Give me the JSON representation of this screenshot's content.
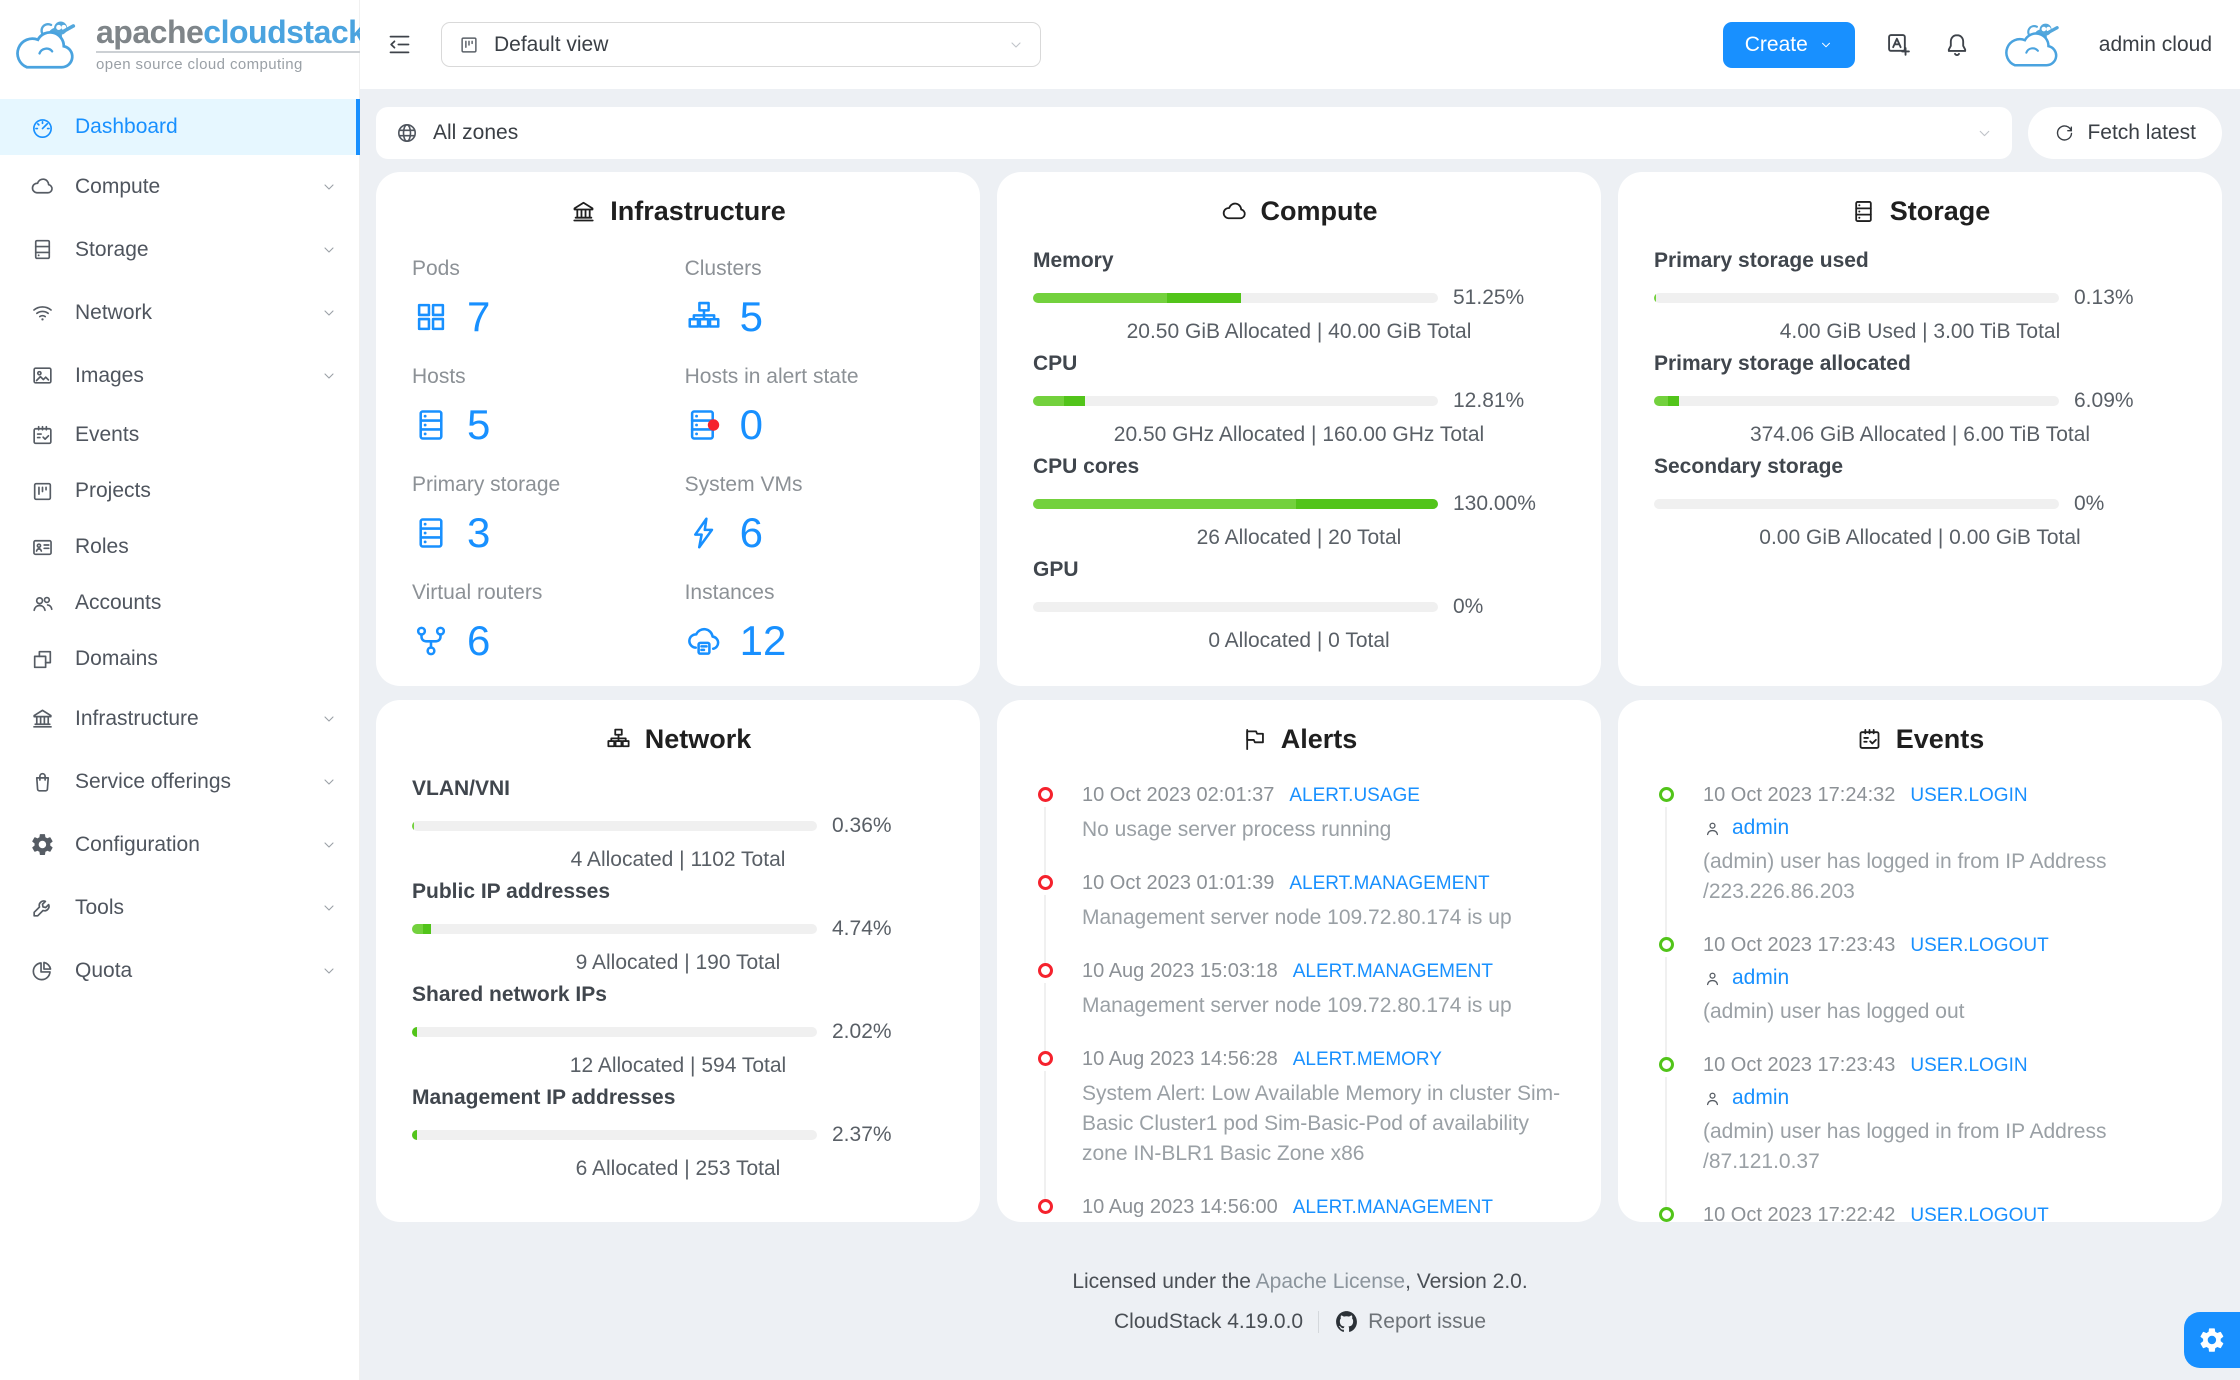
{
  "brand": {
    "name_gray": "apache",
    "name_blue": "cloudstack",
    "tm": "™",
    "tagline": "open source cloud computing"
  },
  "colors": {
    "primary": "#1890ff",
    "green": "#52c41a",
    "green_light": "#73d13d",
    "red": "#f5222d",
    "selected_bg": "#e6f7ff",
    "page_bg": "#edf0f4",
    "track": "#f0f0f0"
  },
  "sidebar": {
    "items": [
      {
        "label": "Dashboard",
        "icon": "dashboard-icon",
        "selected": true,
        "expandable": false,
        "plain": true
      },
      {
        "label": "Compute",
        "icon": "cloud-icon",
        "expandable": true
      },
      {
        "label": "Storage",
        "icon": "database-icon",
        "expandable": true
      },
      {
        "label": "Network",
        "icon": "wifi-icon",
        "expandable": true
      },
      {
        "label": "Images",
        "icon": "picture-icon",
        "expandable": true
      },
      {
        "label": "Events",
        "icon": "schedule-icon",
        "expandable": false,
        "plain": true
      },
      {
        "label": "Projects",
        "icon": "project-icon",
        "expandable": false,
        "plain": true
      },
      {
        "label": "Roles",
        "icon": "idcard-icon",
        "expandable": false,
        "plain": true
      },
      {
        "label": "Accounts",
        "icon": "team-icon",
        "expandable": false,
        "plain": true
      },
      {
        "label": "Domains",
        "icon": "block-icon",
        "expandable": false,
        "plain": true
      },
      {
        "label": "Infrastructure",
        "icon": "bank-icon",
        "expandable": true
      },
      {
        "label": "Service offerings",
        "icon": "shopping-icon",
        "expandable": true
      },
      {
        "label": "Configuration",
        "icon": "setting-icon",
        "expandable": true
      },
      {
        "label": "Tools",
        "icon": "tool-icon",
        "expandable": true
      },
      {
        "label": "Quota",
        "icon": "pie-icon",
        "expandable": true
      }
    ]
  },
  "header": {
    "view_value": "Default view",
    "create_label": "Create",
    "user": "admin cloud"
  },
  "zonebar": {
    "zone_value": "All zones",
    "fetch_label": "Fetch latest"
  },
  "cards": {
    "infrastructure": {
      "title": "Infrastructure",
      "icon": "bank-icon",
      "stats": [
        {
          "label": "Pods",
          "value": "7",
          "icon": "appstore-icon"
        },
        {
          "label": "Clusters",
          "value": "5",
          "icon": "cluster-icon"
        },
        {
          "label": "Hosts",
          "value": "5",
          "icon": "server-icon"
        },
        {
          "label": "Hosts in alert state",
          "value": "0",
          "icon": "server-alert-icon"
        },
        {
          "label": "Primary storage",
          "value": "3",
          "icon": "server-icon"
        },
        {
          "label": "System VMs",
          "value": "6",
          "icon": "thunderbolt-icon"
        },
        {
          "label": "Virtual routers",
          "value": "6",
          "icon": "fork-icon"
        },
        {
          "label": "Instances",
          "value": "12",
          "icon": "cloud-server-icon"
        }
      ]
    },
    "compute": {
      "title": "Compute",
      "icon": "cloud-icon",
      "metrics": [
        {
          "label": "Memory",
          "percent": "51.25%",
          "caption": "20.50 GiB Allocated | 40.00 GiB Total",
          "segments": [
            {
              "pct": 33,
              "color": "#73d13d"
            },
            {
              "pct": 18.3,
              "color": "#52c41a"
            }
          ]
        },
        {
          "label": "CPU",
          "percent": "12.81%",
          "caption": "20.50 GHz Allocated | 160.00 GHz Total",
          "segments": [
            {
              "pct": 7.7,
              "color": "#73d13d"
            },
            {
              "pct": 5.1,
              "color": "#52c41a"
            }
          ]
        },
        {
          "label": "CPU cores",
          "percent": "130.00%",
          "caption": "26 Allocated | 20 Total",
          "segments": [
            {
              "pct": 65,
              "color": "#73d13d"
            },
            {
              "pct": 35,
              "color": "#52c41a"
            }
          ]
        },
        {
          "label": "GPU",
          "percent": "0%",
          "caption": "0 Allocated | 0 Total",
          "segments": []
        }
      ]
    },
    "storage": {
      "title": "Storage",
      "icon": "server-icon",
      "metrics": [
        {
          "label": "Primary storage used",
          "percent": "0.13%",
          "caption": "4.00 GiB Used | 3.00 TiB Total",
          "segments": [
            {
              "pct": 0.6,
              "color": "#73d13d"
            }
          ]
        },
        {
          "label": "Primary storage allocated",
          "percent": "6.09%",
          "caption": "374.06 GiB Allocated | 6.00 TiB Total",
          "segments": [
            {
              "pct": 3.4,
              "color": "#73d13d"
            },
            {
              "pct": 2.7,
              "color": "#52c41a"
            }
          ]
        },
        {
          "label": "Secondary storage",
          "percent": "0%",
          "caption": "0.00 GiB Allocated | 0.00 GiB Total",
          "segments": []
        }
      ]
    },
    "network": {
      "title": "Network",
      "icon": "cluster-icon",
      "metrics": [
        {
          "label": "VLAN/VNI",
          "percent": "0.36%",
          "caption": "4 Allocated | 1102 Total",
          "segments": [
            {
              "pct": 0.6,
              "color": "#73d13d"
            }
          ]
        },
        {
          "label": "Public IP addresses",
          "percent": "4.74%",
          "caption": "9 Allocated | 190 Total",
          "segments": [
            {
              "pct": 2.6,
              "color": "#73d13d"
            },
            {
              "pct": 2.1,
              "color": "#52c41a"
            }
          ]
        },
        {
          "label": "Shared network IPs",
          "percent": "2.02%",
          "caption": "12 Allocated | 594 Total",
          "segments": [
            {
              "pct": 1.3,
              "color": "#52c41a"
            }
          ]
        },
        {
          "label": "Management IP addresses",
          "percent": "2.37%",
          "caption": "6 Allocated | 253 Total",
          "segments": [
            {
              "pct": 1.3,
              "color": "#52c41a"
            }
          ]
        }
      ]
    },
    "alerts": {
      "title": "Alerts",
      "icon": "flag-icon",
      "items": [
        {
          "time": "10 Oct 2023 02:01:37",
          "tag": "ALERT.USAGE",
          "desc": "No usage server process running"
        },
        {
          "time": "10 Oct 2023 01:01:39",
          "tag": "ALERT.MANAGEMENT",
          "desc": "Management server node 109.72.80.174 is up"
        },
        {
          "time": "10 Aug 2023 15:03:18",
          "tag": "ALERT.MANAGEMENT",
          "desc": "Management server node 109.72.80.174 is up"
        },
        {
          "time": "10 Aug 2023 14:56:28",
          "tag": "ALERT.MEMORY",
          "desc": "System Alert: Low Available Memory in cluster Sim-Basic Cluster1 pod Sim-Basic-Pod of availability zone IN-BLR1 Basic Zone x86"
        },
        {
          "time": "10 Aug 2023 14:56:00",
          "tag": "ALERT.MANAGEMENT",
          "desc": ""
        }
      ]
    },
    "events": {
      "title": "Events",
      "icon": "schedule-icon",
      "items": [
        {
          "time": "10 Oct 2023 17:24:32",
          "tag": "USER.LOGIN",
          "user": "admin",
          "desc": "(admin) user has logged in from IP Address /223.226.86.203"
        },
        {
          "time": "10 Oct 2023 17:23:43",
          "tag": "USER.LOGOUT",
          "user": "admin",
          "desc": "(admin) user has logged out"
        },
        {
          "time": "10 Oct 2023 17:23:43",
          "tag": "USER.LOGIN",
          "user": "admin",
          "desc": "(admin) user has logged in from IP Address /87.121.0.37"
        },
        {
          "time": "10 Oct 2023 17:22:42",
          "tag": "USER.LOGOUT",
          "user": "",
          "desc": ""
        }
      ]
    }
  },
  "footer": {
    "license_prefix": "Licensed under the ",
    "license_link": "Apache License",
    "license_suffix": ", Version 2.0.",
    "version": "CloudStack 4.19.0.0",
    "report": "Report issue"
  }
}
